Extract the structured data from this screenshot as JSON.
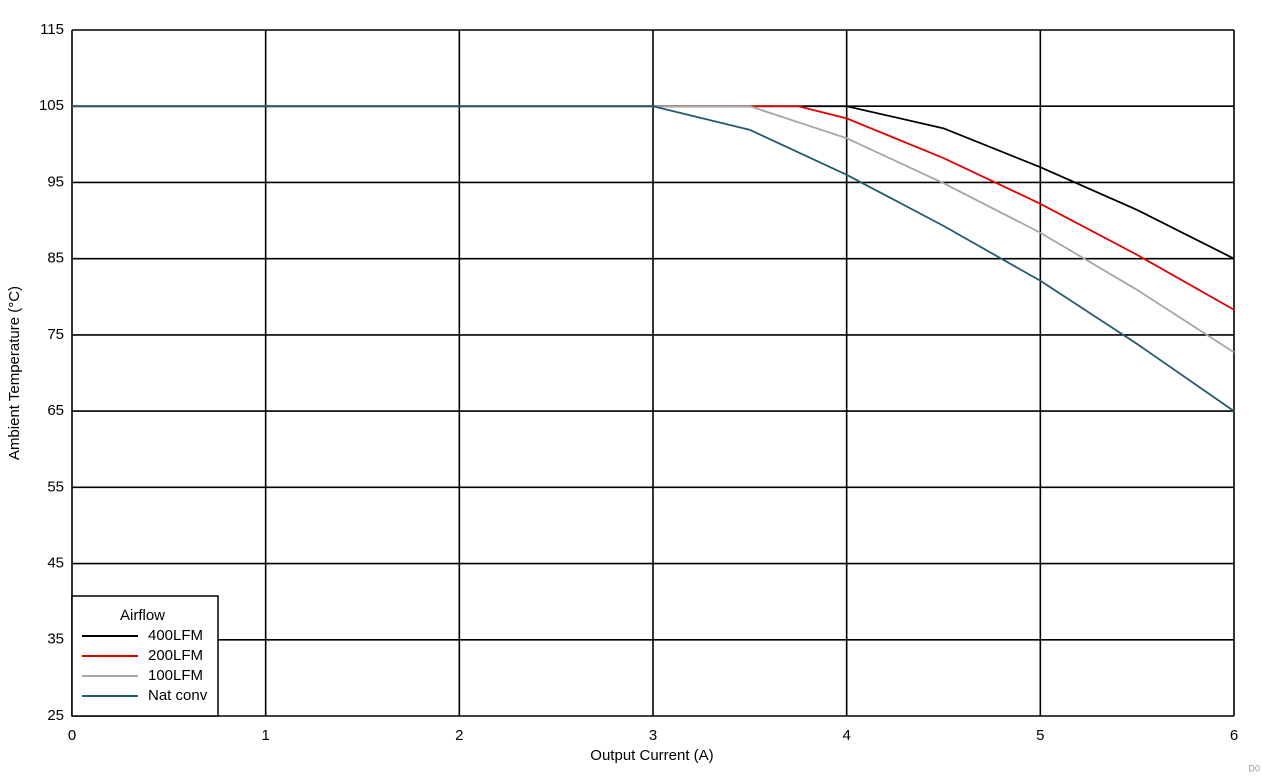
{
  "chart_data": {
    "type": "line",
    "x_label": "Output Current (A)",
    "y_label": "Ambient Temperature (°C)",
    "xlim": [
      0,
      6
    ],
    "xticks": [
      0,
      1,
      2,
      3,
      4,
      5,
      6
    ],
    "ylim": [
      25,
      115
    ],
    "yticks": [
      25,
      35,
      45,
      55,
      65,
      75,
      85,
      95,
      105,
      115
    ],
    "grid": true,
    "legend_title": "Airflow",
    "legend_position": "lower left",
    "footnote": "D0",
    "series": [
      {
        "name": "400LFM",
        "color": "#000000",
        "x": [
          0,
          3,
          4,
          4.5,
          5,
          5.5,
          6
        ],
        "values": [
          105,
          105,
          105,
          102.1,
          97,
          91.4,
          85
        ]
      },
      {
        "name": "200LFM",
        "color": "#e00000",
        "x": [
          0,
          3,
          3.5,
          3.75,
          4,
          4.5,
          5,
          5.5,
          6
        ],
        "values": [
          105,
          105,
          105,
          105,
          103.4,
          98.2,
          92.2,
          85.5,
          78.3
        ]
      },
      {
        "name": "100LFM",
        "color": "#a6a6a6",
        "x": [
          0,
          3,
          3.5,
          4,
          4.5,
          5,
          5.5,
          6
        ],
        "values": [
          105,
          105,
          105,
          100.8,
          94.9,
          88.4,
          80.9,
          72.7
        ]
      },
      {
        "name": "Nat conv",
        "color": "#245a70",
        "x": [
          0,
          3,
          3.5,
          4,
          4.5,
          5,
          5.5,
          6
        ],
        "values": [
          105,
          105,
          101.9,
          96,
          89.3,
          82.1,
          73.8,
          65
        ]
      }
    ]
  }
}
